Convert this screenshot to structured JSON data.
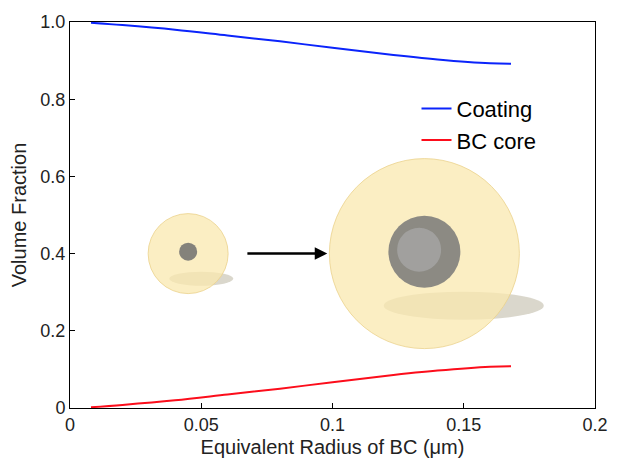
{
  "chart_data": {
    "type": "line",
    "x_label": "Equivalent Radius of BC (μm)",
    "y_label": "Volume Fraction",
    "x": [
      0.008,
      0.02,
      0.04,
      0.06,
      0.08,
      0.1,
      0.12,
      0.14,
      0.16,
      0.168
    ],
    "series": [
      {
        "name": "Coating",
        "color": "#0b24fb",
        "line_style": "solid",
        "values": [
          0.998,
          0.992,
          0.98,
          0.965,
          0.95,
          0.933,
          0.917,
          0.903,
          0.893,
          0.892
        ]
      },
      {
        "name": "BC core",
        "color": "#fc0d1b",
        "line_style": "solid",
        "values": [
          0.002,
          0.008,
          0.02,
          0.035,
          0.05,
          0.067,
          0.083,
          0.097,
          0.107,
          0.108
        ]
      }
    ],
    "xlim": [
      0,
      0.2
    ],
    "xticks": [
      0,
      0.05,
      0.1,
      0.15,
      0.2
    ],
    "ylim": [
      0,
      1
    ],
    "yticks": [
      0,
      0.2,
      0.4,
      0.6,
      0.8,
      {
        "value": 1,
        "label": "1.0"
      }
    ],
    "grid": false,
    "legend": "upper right"
  }
}
